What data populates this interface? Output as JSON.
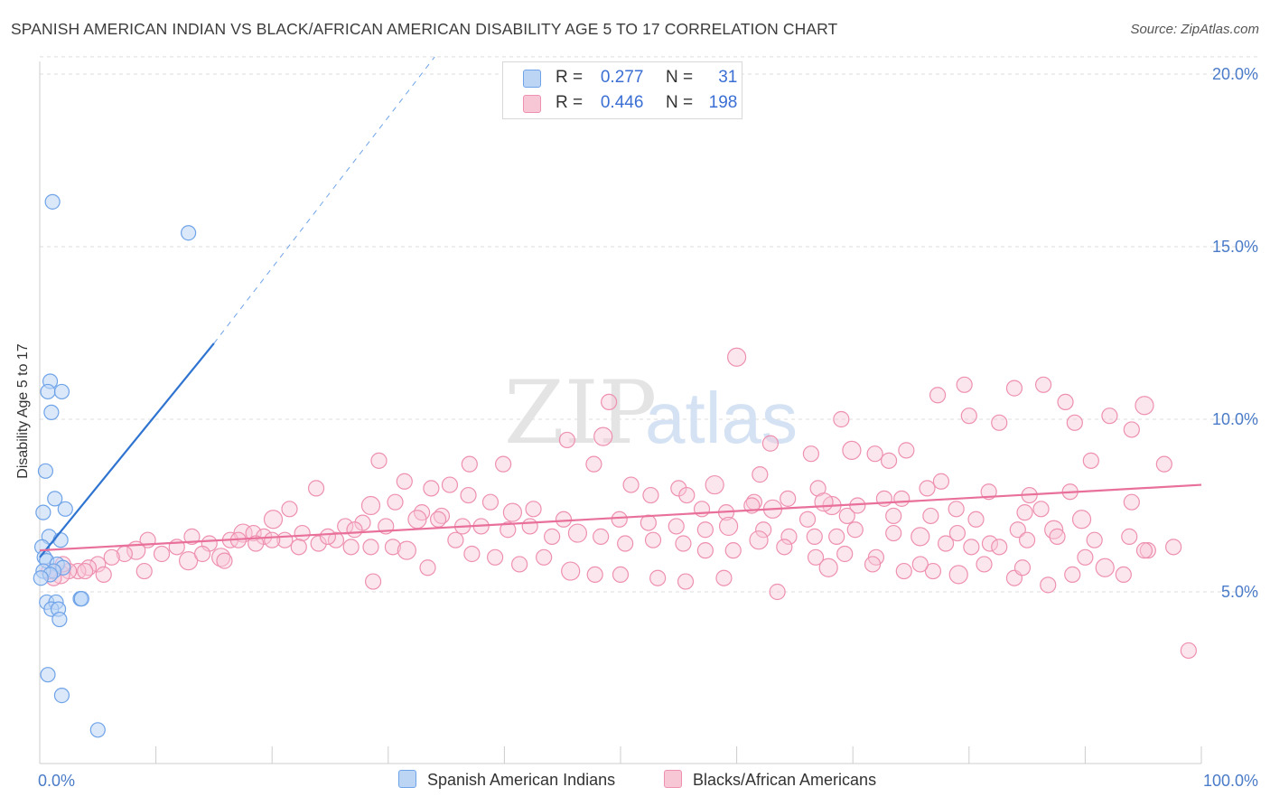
{
  "title": "SPANISH AMERICAN INDIAN VS BLACK/AFRICAN AMERICAN DISABILITY AGE 5 TO 17 CORRELATION CHART",
  "source": "Source: ZipAtlas.com",
  "watermark": {
    "zip": "ZIP",
    "atlas": "atlas"
  },
  "colors": {
    "blue": "#6fa3e8",
    "blue_fill": "#bcd5f5",
    "blue_line": "#2f74d0",
    "pink": "#ee90b0",
    "pink_fill": "#f8c7d6",
    "pink_line": "#e8709a",
    "tick_label": "#4a7bc8",
    "grid": "#dddddd"
  },
  "legend": {
    "r_label": "R =",
    "n_label": "N =",
    "rows": [
      {
        "r": "0.277",
        "n": "31"
      },
      {
        "r": "0.446",
        "n": "198"
      }
    ]
  },
  "chart_data": {
    "type": "scatter",
    "title": "SPANISH AMERICAN INDIAN VS BLACK/AFRICAN AMERICAN DISABILITY AGE 5 TO 17 CORRELATION CHART",
    "xlabel": "",
    "ylabel": "Disability Age 5 to 17",
    "xlim": [
      0,
      100
    ],
    "ylim": [
      0,
      21
    ],
    "x_ticks": [
      "0.0%",
      "100.0%"
    ],
    "y_ticks": [
      {
        "value": 5,
        "label": "5.0%"
      },
      {
        "value": 10,
        "label": "10.0%"
      },
      {
        "value": 15,
        "label": "15.0%"
      },
      {
        "value": 20,
        "label": "20.0%"
      }
    ],
    "grid": true,
    "legend_position": "top-center",
    "series": [
      {
        "name": "Spanish American Indians",
        "color": "#6fa3e8",
        "r": 0.277,
        "n": 31,
        "trend": {
          "x": [
            0,
            15
          ],
          "y": [
            6.0,
            12.2
          ],
          "dashed_to": {
            "x": 34,
            "y": 20.5
          }
        },
        "points": [
          [
            1.1,
            16.3
          ],
          [
            12.8,
            15.4
          ],
          [
            0.9,
            11.1
          ],
          [
            0.7,
            10.8
          ],
          [
            1.9,
            10.8
          ],
          [
            1.0,
            10.2
          ],
          [
            0.5,
            8.5
          ],
          [
            1.3,
            7.7
          ],
          [
            2.2,
            7.4
          ],
          [
            0.3,
            7.3
          ],
          [
            0.8,
            6.6
          ],
          [
            1.8,
            6.5
          ],
          [
            0.2,
            6.3
          ],
          [
            0.4,
            6.0
          ],
          [
            0.6,
            5.9
          ],
          [
            1.5,
            5.8
          ],
          [
            2.0,
            5.7
          ],
          [
            1.2,
            5.6
          ],
          [
            0.3,
            5.6
          ],
          [
            0.9,
            5.5
          ],
          [
            0.1,
            5.4
          ],
          [
            3.5,
            4.8
          ],
          [
            3.6,
            4.8
          ],
          [
            0.6,
            4.7
          ],
          [
            1.4,
            4.7
          ],
          [
            1.0,
            4.5
          ],
          [
            1.6,
            4.5
          ],
          [
            1.7,
            4.2
          ],
          [
            0.7,
            2.6
          ],
          [
            1.9,
            2.0
          ],
          [
            5.0,
            1.0
          ]
        ]
      },
      {
        "name": "Blacks/African Americans",
        "color": "#ee90b0",
        "r": 0.446,
        "n": 198,
        "trend": {
          "x": [
            0,
            100
          ],
          "y": [
            6.2,
            8.1
          ]
        },
        "points": [
          [
            60.0,
            11.8
          ],
          [
            86.4,
            11.0
          ],
          [
            79.6,
            11.0
          ],
          [
            83.9,
            10.9
          ],
          [
            77.3,
            10.7
          ],
          [
            49.0,
            10.5
          ],
          [
            88.3,
            10.5
          ],
          [
            95.1,
            10.4
          ],
          [
            80.0,
            10.1
          ],
          [
            92.1,
            10.1
          ],
          [
            89.1,
            9.9
          ],
          [
            69.0,
            10.0
          ],
          [
            82.6,
            9.9
          ],
          [
            94.0,
            9.7
          ],
          [
            48.5,
            9.5
          ],
          [
            45.4,
            9.4
          ],
          [
            62.9,
            9.3
          ],
          [
            66.4,
            9.0
          ],
          [
            74.6,
            9.1
          ],
          [
            96.8,
            8.7
          ],
          [
            71.9,
            9.0
          ],
          [
            69.9,
            9.1
          ],
          [
            73.1,
            8.8
          ],
          [
            90.5,
            8.8
          ],
          [
            37.0,
            8.7
          ],
          [
            39.9,
            8.7
          ],
          [
            62.0,
            8.4
          ],
          [
            47.7,
            8.7
          ],
          [
            58.1,
            8.1
          ],
          [
            67.0,
            8.0
          ],
          [
            76.4,
            8.0
          ],
          [
            88.7,
            7.9
          ],
          [
            81.7,
            7.9
          ],
          [
            85.2,
            7.8
          ],
          [
            78.9,
            7.4
          ],
          [
            68.2,
            7.5
          ],
          [
            72.7,
            7.7
          ],
          [
            77.6,
            8.2
          ],
          [
            52.6,
            7.8
          ],
          [
            55.0,
            8.0
          ],
          [
            50.9,
            8.1
          ],
          [
            61.5,
            7.6
          ],
          [
            63.1,
            7.4
          ],
          [
            66.1,
            7.1
          ],
          [
            69.5,
            7.2
          ],
          [
            73.5,
            7.2
          ],
          [
            80.6,
            7.1
          ],
          [
            84.8,
            7.3
          ],
          [
            86.2,
            7.4
          ],
          [
            89.7,
            7.1
          ],
          [
            94.0,
            7.6
          ],
          [
            55.7,
            7.8
          ],
          [
            57.0,
            7.4
          ],
          [
            59.1,
            7.3
          ],
          [
            61.3,
            7.5
          ],
          [
            64.4,
            7.7
          ],
          [
            67.5,
            7.6
          ],
          [
            70.4,
            7.5
          ],
          [
            74.2,
            7.7
          ],
          [
            76.7,
            7.2
          ],
          [
            79.0,
            6.7
          ],
          [
            81.8,
            6.4
          ],
          [
            84.2,
            6.8
          ],
          [
            87.3,
            6.8
          ],
          [
            90.8,
            6.5
          ],
          [
            93.8,
            6.6
          ],
          [
            95.4,
            6.2
          ],
          [
            97.6,
            6.3
          ],
          [
            36.9,
            7.8
          ],
          [
            38.8,
            7.6
          ],
          [
            40.7,
            7.3
          ],
          [
            42.5,
            7.4
          ],
          [
            45.1,
            7.1
          ],
          [
            49.9,
            7.1
          ],
          [
            52.4,
            7.0
          ],
          [
            54.8,
            6.9
          ],
          [
            57.3,
            6.8
          ],
          [
            59.3,
            6.9
          ],
          [
            62.3,
            6.8
          ],
          [
            64.5,
            6.6
          ],
          [
            66.7,
            6.6
          ],
          [
            68.6,
            6.6
          ],
          [
            70.2,
            6.8
          ],
          [
            73.5,
            6.7
          ],
          [
            75.8,
            6.6
          ],
          [
            78.0,
            6.4
          ],
          [
            80.2,
            6.3
          ],
          [
            82.6,
            6.3
          ],
          [
            85.0,
            6.5
          ],
          [
            87.6,
            6.6
          ],
          [
            90.0,
            6.0
          ],
          [
            91.7,
            5.7
          ],
          [
            93.3,
            5.5
          ],
          [
            95.1,
            6.2
          ],
          [
            29.2,
            8.8
          ],
          [
            31.4,
            8.2
          ],
          [
            33.7,
            8.0
          ],
          [
            35.3,
            8.1
          ],
          [
            28.5,
            7.5
          ],
          [
            30.6,
            7.6
          ],
          [
            32.9,
            7.3
          ],
          [
            34.6,
            7.2
          ],
          [
            26.3,
            6.9
          ],
          [
            27.8,
            7.0
          ],
          [
            29.8,
            6.9
          ],
          [
            32.5,
            7.1
          ],
          [
            34.3,
            7.1
          ],
          [
            36.4,
            6.9
          ],
          [
            38.0,
            6.9
          ],
          [
            40.3,
            6.8
          ],
          [
            42.2,
            6.9
          ],
          [
            44.1,
            6.6
          ],
          [
            46.3,
            6.7
          ],
          [
            48.3,
            6.6
          ],
          [
            50.4,
            6.4
          ],
          [
            52.8,
            6.5
          ],
          [
            55.4,
            6.4
          ],
          [
            57.3,
            6.2
          ],
          [
            59.7,
            6.2
          ],
          [
            61.9,
            6.5
          ],
          [
            64.1,
            6.3
          ],
          [
            66.8,
            6.0
          ],
          [
            69.3,
            6.1
          ],
          [
            72.0,
            6.0
          ],
          [
            74.4,
            5.6
          ],
          [
            76.9,
            5.6
          ],
          [
            79.1,
            5.5
          ],
          [
            81.3,
            5.8
          ],
          [
            83.9,
            5.4
          ],
          [
            86.8,
            5.2
          ],
          [
            88.9,
            5.5
          ],
          [
            23.8,
            8.0
          ],
          [
            21.5,
            7.4
          ],
          [
            20.1,
            7.1
          ],
          [
            22.6,
            6.7
          ],
          [
            24.0,
            6.4
          ],
          [
            25.5,
            6.5
          ],
          [
            27.1,
            6.8
          ],
          [
            28.5,
            6.3
          ],
          [
            30.4,
            6.3
          ],
          [
            17.5,
            6.7
          ],
          [
            16.4,
            6.5
          ],
          [
            14.6,
            6.4
          ],
          [
            13.1,
            6.6
          ],
          [
            11.8,
            6.3
          ],
          [
            10.5,
            6.1
          ],
          [
            9.3,
            6.5
          ],
          [
            8.3,
            6.2
          ],
          [
            7.3,
            6.1
          ],
          [
            6.2,
            6.0
          ],
          [
            5.0,
            5.8
          ],
          [
            4.2,
            5.7
          ],
          [
            3.3,
            5.6
          ],
          [
            2.5,
            5.6
          ],
          [
            1.8,
            5.5
          ],
          [
            1.2,
            5.4
          ],
          [
            0.8,
            5.6
          ],
          [
            2.0,
            5.8
          ],
          [
            3.9,
            5.6
          ],
          [
            5.5,
            5.5
          ],
          [
            9.0,
            5.6
          ],
          [
            15.6,
            6.0
          ],
          [
            18.4,
            6.7
          ],
          [
            19.3,
            6.6
          ],
          [
            21.1,
            6.5
          ],
          [
            22.3,
            6.3
          ],
          [
            24.8,
            6.6
          ],
          [
            26.8,
            6.3
          ],
          [
            12.8,
            5.9
          ],
          [
            14.0,
            6.1
          ],
          [
            15.9,
            5.9
          ],
          [
            17.1,
            6.5
          ],
          [
            18.6,
            6.4
          ],
          [
            20.0,
            6.5
          ],
          [
            28.7,
            5.3
          ],
          [
            31.6,
            6.2
          ],
          [
            33.4,
            5.7
          ],
          [
            35.8,
            6.5
          ],
          [
            37.2,
            6.1
          ],
          [
            39.2,
            6.0
          ],
          [
            41.3,
            5.8
          ],
          [
            43.4,
            6.0
          ],
          [
            45.7,
            5.6
          ],
          [
            47.8,
            5.5
          ],
          [
            50.0,
            5.5
          ],
          [
            53.2,
            5.4
          ],
          [
            55.6,
            5.3
          ],
          [
            58.9,
            5.4
          ],
          [
            63.5,
            5.0
          ],
          [
            67.9,
            5.7
          ],
          [
            71.7,
            5.8
          ],
          [
            75.8,
            5.8
          ],
          [
            84.6,
            5.7
          ],
          [
            98.9,
            3.3
          ]
        ]
      }
    ]
  }
}
